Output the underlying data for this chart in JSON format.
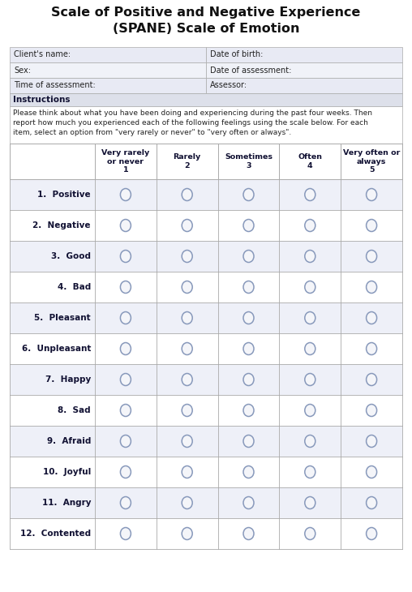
{
  "title_line1": "Scale of Positive and Negative Experience",
  "title_line2": "(SPANE) Scale of Emotion",
  "info_fields_left": [
    "Client's name:",
    "Sex:",
    "Time of assessment:"
  ],
  "info_fields_right": [
    "Date of birth:",
    "Date of assessment:",
    "Assessor:"
  ],
  "instructions_header": "Instructions",
  "instructions_text": "Please think about what you have been doing and experiencing during the past four weeks. Then\nreport how much you experienced each of the following feelings using the scale below. For each\nitem, select an option from \"very rarely or never\" to \"very often or always\".",
  "col_headers": [
    "Very rarely\nor never\n1",
    "Rarely\n2",
    "Sometimes\n3",
    "Often\n4",
    "Very often or\nalways\n5"
  ],
  "items": [
    "1.  Positive",
    "2.  Negative",
    "3.  Good",
    "4.  Bad",
    "5.  Pleasant",
    "6.  Unpleasant",
    "7.  Happy",
    "8.  Sad",
    "9.  Afraid",
    "10.  Joyful",
    "11.  Angry",
    "12.  Contented"
  ],
  "n_cols": 5,
  "n_rows": 12,
  "bg_color": "#ffffff",
  "instructions_bg": "#dde0ea",
  "table_border_color": "#aaaaaa",
  "info_row_bg_odd": "#e8eaf4",
  "info_row_bg_even": "#f0f2f8",
  "row_bg_odd": "#eef0f8",
  "row_bg_even": "#ffffff",
  "circle_edge_color": "#8899bb",
  "circle_face_color": "#f4f5f9",
  "title_color": "#111111",
  "text_color": "#222222",
  "label_color": "#111133",
  "header_text_color": "#111133"
}
